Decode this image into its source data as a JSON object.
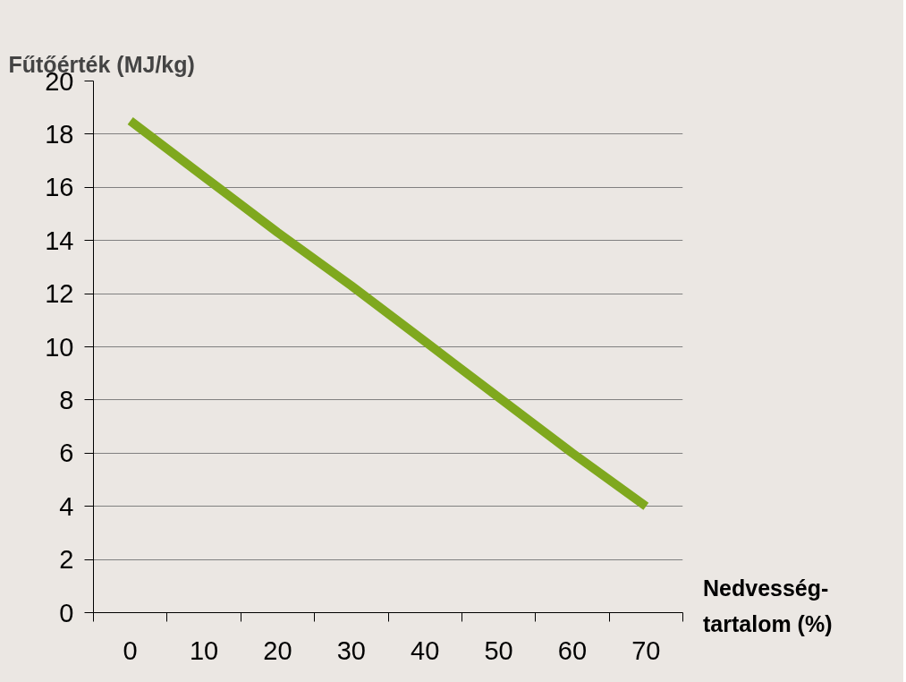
{
  "chart_data": {
    "type": "line",
    "ylabel": "Fűtőérték (MJ/kg)",
    "xlabel": "Nedvesség-\ntartalom (%)",
    "categories": [
      "0",
      "10",
      "20",
      "30",
      "40",
      "50",
      "60",
      "70"
    ],
    "values": [
      18.5,
      16.4,
      14.3,
      12.3,
      10.2,
      8.1,
      6.0,
      4.0
    ],
    "color": "#7fa81e",
    "ylim": [
      0,
      20
    ],
    "yticks": [
      0,
      2,
      4,
      6,
      8,
      10,
      12,
      14,
      16,
      18,
      20
    ],
    "grid": "y"
  }
}
